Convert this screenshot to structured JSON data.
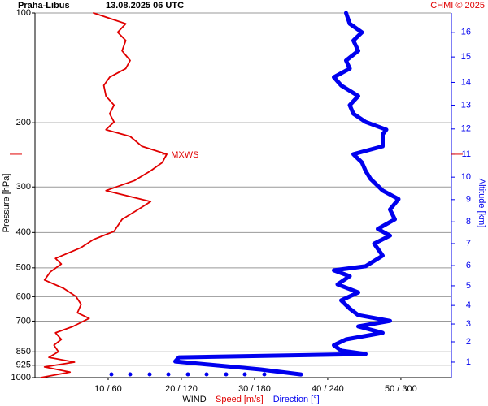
{
  "chart_data": {
    "type": "line",
    "title": "Praha-Libus",
    "subtitle": "13.08.2025 06 UTC",
    "credit": "CHMI © 2025",
    "y_label": "Pressure [hPa]",
    "y2_label": "Altitude [km]",
    "x_label": "WIND",
    "y_log": true,
    "y_inverted": true,
    "grid": true,
    "ylim": [
      100,
      1000
    ],
    "yticks": [
      100,
      200,
      300,
      400,
      500,
      600,
      700,
      850,
      925,
      1000
    ],
    "xlim": [
      0,
      56.9
    ],
    "x2lim": [
      0,
      341.3
    ],
    "xticks": [
      {
        "value": 10,
        "label": "10 / 60"
      },
      {
        "value": 20,
        "label": "20 / 120"
      },
      {
        "value": 30,
        "label": "30 / 180"
      },
      {
        "value": 40,
        "label": "40 / 240"
      },
      {
        "value": 50,
        "label": "50 / 300"
      }
    ],
    "altitude_ticks": [
      {
        "km": 1,
        "hPa": 907
      },
      {
        "km": 2,
        "hPa": 798
      },
      {
        "km": 3,
        "hPa": 713
      },
      {
        "km": 4,
        "hPa": 634
      },
      {
        "km": 5,
        "hPa": 560
      },
      {
        "km": 6,
        "hPa": 493
      },
      {
        "km": 7,
        "hPa": 429
      },
      {
        "km": 8,
        "hPa": 374
      },
      {
        "km": 9,
        "hPa": 325
      },
      {
        "km": 10,
        "hPa": 282
      },
      {
        "km": 11,
        "hPa": 244
      },
      {
        "km": 12,
        "hPa": 208
      },
      {
        "km": 13,
        "hPa": 179
      },
      {
        "km": 14,
        "hPa": 155
      },
      {
        "km": 15,
        "hPa": 132
      },
      {
        "km": 16,
        "hPa": 113
      }
    ],
    "annotation": {
      "text": "MXWS",
      "pressure": 244,
      "speed": 17.7
    },
    "series": [
      {
        "name": "Speed [m/s]",
        "color": "#e00000",
        "axis": "x",
        "pressure": [
          1000,
          966,
          935,
          907,
          880,
          849,
          815,
          786,
          754,
          724,
          688,
          664,
          630,
          599,
          569,
          540,
          513,
          488,
          471,
          440,
          418,
          397,
          368,
          346,
          329,
          307,
          288,
          271,
          257,
          244,
          232,
          218,
          209,
          199,
          189,
          179,
          169,
          158,
          150,
          142,
          135,
          127,
          119,
          113,
          107,
          100
        ],
        "values": [
          0.8,
          4.8,
          1.3,
          5.4,
          1.9,
          3.2,
          2.6,
          3.6,
          2.8,
          5.2,
          7.4,
          5.8,
          6.3,
          5.6,
          3.9,
          1.3,
          2.1,
          3.6,
          2.8,
          6.3,
          8,
          10.8,
          11.9,
          14.1,
          15.8,
          9.7,
          13.6,
          15.8,
          17.4,
          18,
          14.6,
          13,
          9.7,
          10.8,
          10.2,
          10.8,
          9.7,
          9.4,
          10.2,
          12.4,
          13,
          11.9,
          12.4,
          11.3,
          12.4,
          8
        ]
      },
      {
        "name": "Direction [°]",
        "color": "#0000ee",
        "axis": "x2",
        "pressure": [
          980,
          950,
          903,
          880,
          862,
          844,
          815,
          786,
          754,
          724,
          699,
          674,
          647,
          614,
          584,
          555,
          527,
          508,
          495,
          463,
          429,
          408,
          391,
          368,
          346,
          324,
          307,
          285,
          271,
          257,
          244,
          232,
          215,
          209,
          199,
          189,
          179,
          169,
          158,
          150,
          142,
          135,
          127,
          119,
          113,
          107,
          100
        ],
        "values": [
          218,
          185,
          115,
          118,
          271,
          251,
          245,
          255,
          285,
          265,
          291,
          265,
          258,
          251,
          265,
          248,
          258,
          245,
          271,
          285,
          278,
          291,
          281,
          295,
          291,
          298,
          285,
          275,
          271,
          268,
          261,
          285,
          285,
          288,
          271,
          261,
          258,
          265,
          251,
          245,
          258,
          255,
          265,
          261,
          268,
          258,
          255
        ]
      }
    ]
  }
}
